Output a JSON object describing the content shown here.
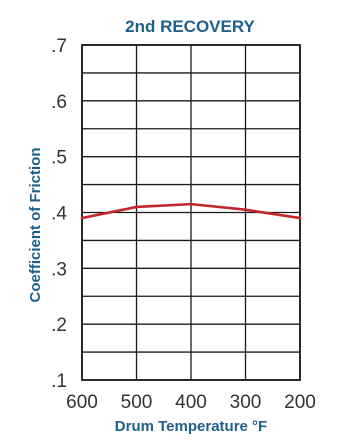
{
  "chart_data": {
    "type": "line",
    "title": "2nd RECOVERY",
    "xlabel": "Drum Temperature °F",
    "ylabel": "Coefficient of Friction",
    "x_ticks": [
      "600",
      "500",
      "400",
      "300",
      "200"
    ],
    "y_ticks": [
      ".1",
      ".2",
      ".3",
      ".4",
      ".5",
      ".6",
      ".7"
    ],
    "xlim": [
      600,
      200
    ],
    "ylim": [
      0.1,
      0.7
    ],
    "grid": true,
    "series": [
      {
        "x": [
          600,
          500,
          400,
          300,
          200
        ],
        "y": [
          0.39,
          0.41,
          0.415,
          0.405,
          0.39
        ]
      }
    ],
    "colors": {
      "title": "#1f5f8b",
      "axis_label": "#1f5f8b",
      "tick": "#333333",
      "line": "#c1272d",
      "grid": "#1a1a1a",
      "frame": "#1a1a1a"
    }
  }
}
